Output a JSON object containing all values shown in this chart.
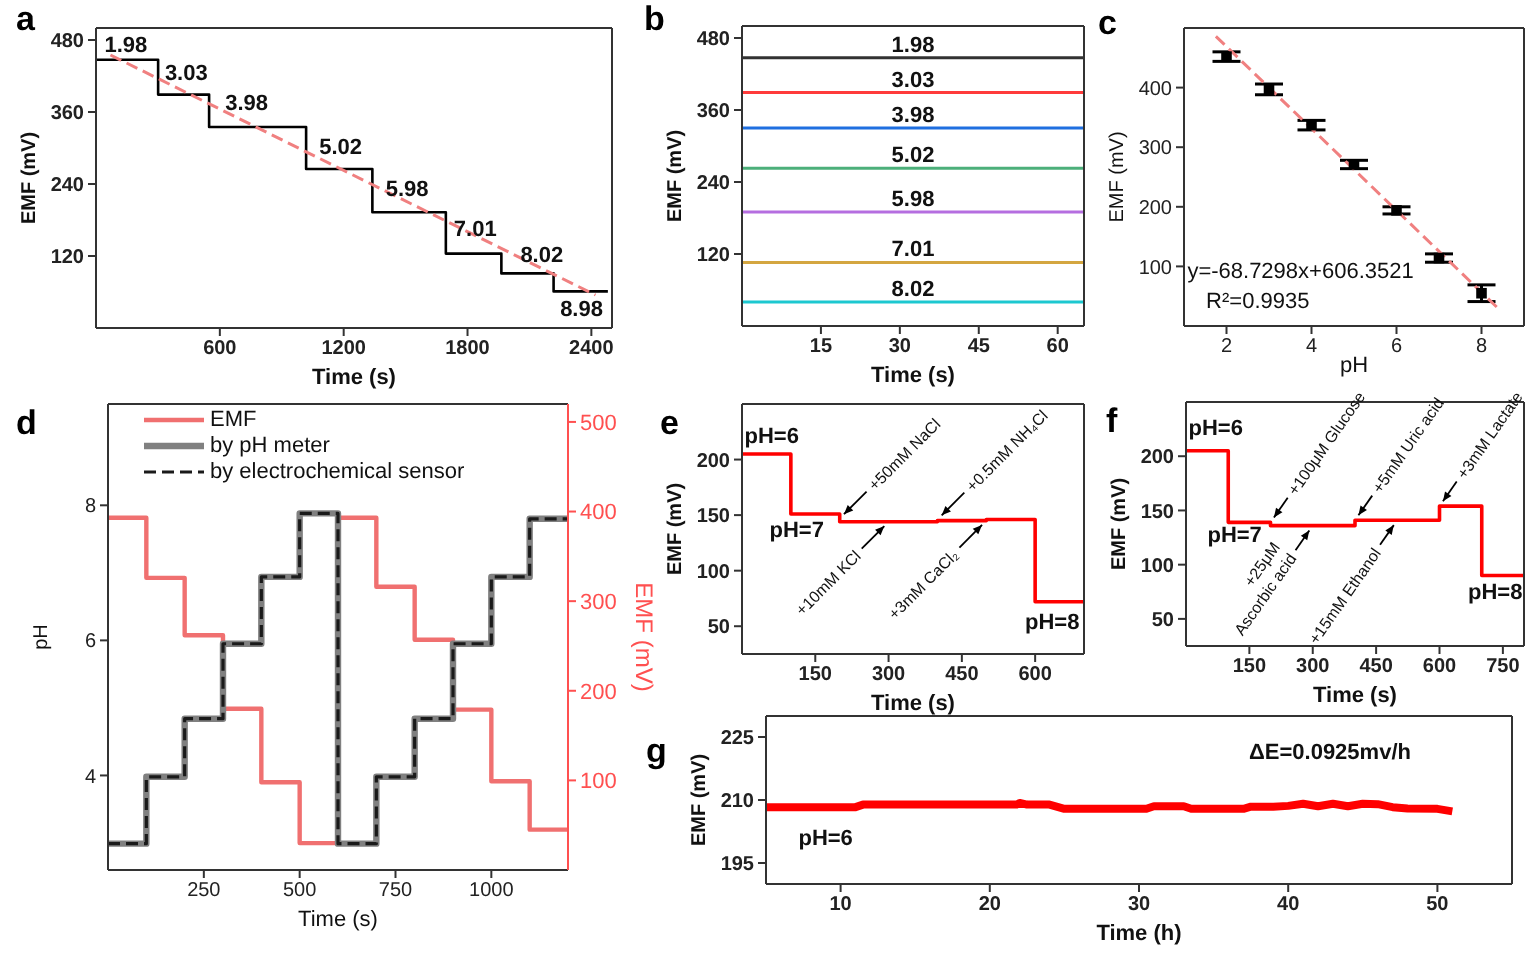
{
  "chart_data": [
    {
      "type": "step",
      "title": "a",
      "xlabel": "Time (s)",
      "ylabel": "EMF (mV)",
      "xlim": [
        0,
        2500
      ],
      "xticks": [
        600,
        1200,
        1800,
        2400
      ],
      "ylim": [
        0,
        500
      ],
      "yticks": [
        120,
        240,
        360,
        480
      ],
      "series": [
        {
          "color": "#000000",
          "x": [
            0,
            301,
            548,
            1018,
            1339,
            1695,
            1964,
            2217,
            2480
          ],
          "values": [
            447,
            389,
            335,
            265,
            193,
            124,
            91,
            61,
            61
          ]
        },
        {
          "type": "line",
          "color": "#f08080",
          "line_style": "dashed",
          "x": [
            70,
            2420
          ],
          "values": [
            455,
            55
          ]
        }
      ],
      "annotations": [
        "1.98",
        "3.03",
        "3.98",
        "5.02",
        "5.98",
        "7.01",
        "8.02",
        "8.98"
      ]
    },
    {
      "type": "line",
      "title": "b",
      "xlabel": "Time (s)",
      "ylabel": "EMF (mV)",
      "xlim": [
        0,
        65
      ],
      "xticks": [
        15,
        30,
        45,
        60
      ],
      "ylim": [
        0,
        500
      ],
      "yticks": [
        120,
        240,
        360,
        480
      ],
      "x": [
        0,
        65
      ],
      "series": [
        {
          "name": "1.98",
          "color": "#333333",
          "values": [
            447,
            447
          ]
        },
        {
          "name": "3.03",
          "color": "#ff3b3b",
          "values": [
            389,
            389
          ]
        },
        {
          "name": "3.98",
          "color": "#1f6fe0",
          "values": [
            330,
            330
          ]
        },
        {
          "name": "5.02",
          "color": "#4caf7a",
          "values": [
            263,
            263
          ]
        },
        {
          "name": "5.98",
          "color": "#b56ee0",
          "values": [
            190,
            190
          ]
        },
        {
          "name": "7.01",
          "color": "#d4a640",
          "values": [
            106,
            106
          ]
        },
        {
          "name": "8.02",
          "color": "#1cc8d0",
          "values": [
            40,
            40
          ]
        }
      ]
    },
    {
      "type": "scatter",
      "title": "c",
      "xlabel": "pH",
      "ylabel": "EMF (mV)",
      "xlim": [
        1,
        9
      ],
      "xticks": [
        2,
        4,
        6,
        8
      ],
      "ylim": [
        0,
        500
      ],
      "yticks": [
        100,
        200,
        300,
        400
      ],
      "series": [
        {
          "color": "#000000",
          "marker": "square",
          "x": [
            2,
            3,
            4,
            5,
            6,
            7,
            8
          ],
          "values": [
            452,
            397,
            337,
            271,
            194,
            114,
            55
          ],
          "errors": [
            8,
            9,
            8,
            7,
            6,
            7,
            14
          ]
        },
        {
          "type": "line",
          "color": "#f08080",
          "line_style": "dashed",
          "x": [
            1.75,
            8.4
          ],
          "values": [
            486,
            29
          ]
        }
      ],
      "annotations": [
        "y=-68.7298x+606.3521",
        "R²=0.9935"
      ]
    },
    {
      "type": "step",
      "title": "d",
      "xlabel": "Time (s)",
      "ylabel": "pH",
      "y2label": "EMF (mV)",
      "xlim": [
        0,
        1200
      ],
      "xticks": [
        250,
        500,
        750,
        1000
      ],
      "ylim": [
        2.6,
        9.5
      ],
      "yticks": [
        4,
        6,
        8
      ],
      "y2lim": [
        0,
        520
      ],
      "y2ticks": [
        100,
        200,
        300,
        400,
        500
      ],
      "legend": "top",
      "series": [
        {
          "name": "EMF",
          "axis": "y2",
          "color": "#f07070",
          "x": [
            0,
            100,
            200,
            300,
            400,
            500,
            600,
            700,
            800,
            900,
            1000,
            1100,
            1200
          ],
          "values": [
            393,
            326,
            262,
            180,
            98,
            30,
            393,
            316,
            257,
            179,
            99,
            45,
            45
          ]
        },
        {
          "name": "by pH meter",
          "color": "#808080",
          "x": [
            0,
            100,
            200,
            300,
            400,
            500,
            600,
            700,
            800,
            900,
            1000,
            1100,
            1200
          ],
          "values": [
            2.99,
            3.98,
            4.84,
            5.95,
            6.94,
            7.88,
            2.99,
            3.98,
            4.84,
            5.95,
            6.94,
            7.8,
            7.8
          ]
        },
        {
          "name": "by electrochemical sensor",
          "color": "#1a1a1a",
          "line_style": "dashed",
          "x": [
            0,
            100,
            200,
            300,
            400,
            500,
            600,
            700,
            800,
            900,
            1000,
            1100,
            1200
          ],
          "values": [
            2.99,
            3.98,
            4.84,
            5.95,
            6.94,
            7.88,
            2.99,
            3.98,
            4.84,
            5.95,
            6.94,
            7.8,
            7.8
          ]
        }
      ]
    },
    {
      "type": "step",
      "title": "e",
      "xlabel": "Time (s)",
      "ylabel": "EMF (mV)",
      "xlim": [
        0,
        700
      ],
      "xticks": [
        150,
        300,
        450,
        600
      ],
      "ylim": [
        25,
        250
      ],
      "yticks": [
        50,
        100,
        150,
        200
      ],
      "series": [
        {
          "color": "#ff0000",
          "x": [
            0,
            100,
            200,
            400,
            500,
            600,
            700
          ],
          "values": [
            205,
            151,
            144,
            145,
            146,
            72,
            72
          ]
        }
      ],
      "annotations": [
        "pH=6",
        "pH=7",
        "pH=8",
        {
          "text": "+50mM NaCl",
          "x": 200,
          "y": 147
        },
        {
          "text": "+0.5mM NH₄Cl",
          "x": 400,
          "y": 146
        },
        {
          "text": "+10mM KCl",
          "x": 300,
          "y": 144
        },
        {
          "text": "+3mM CaCl₂",
          "x": 500,
          "y": 145
        }
      ]
    },
    {
      "type": "step",
      "title": "f",
      "xlabel": "Time (s)",
      "ylabel": "EMF (mV)",
      "xlim": [
        0,
        800
      ],
      "xticks": [
        150,
        300,
        450,
        600,
        750
      ],
      "ylim": [
        25,
        250
      ],
      "yticks": [
        50,
        100,
        150,
        200
      ],
      "series": [
        {
          "color": "#ff0000",
          "x": [
            0,
            100,
            200,
            400,
            600,
            700,
            800
          ],
          "values": [
            205,
            139,
            136,
            141,
            154,
            90,
            90
          ]
        }
      ],
      "annotations": [
        "pH=6",
        "pH=7",
        "pH=8",
        {
          "text": "+100μM Glucose",
          "x": 200,
          "y": 139
        },
        {
          "text": "+5mM Uric acid",
          "x": 400,
          "y": 141
        },
        {
          "text": "+3mM Lactate",
          "x": 600,
          "y": 154
        },
        {
          "text": "+25μM\nAscorbic acid",
          "x": 300,
          "y": 136
        },
        {
          "text": "+15mM Ethanol",
          "x": 500,
          "y": 141
        }
      ]
    },
    {
      "type": "line",
      "title": "g",
      "xlabel": "Time (h)",
      "ylabel": "EMF (mV)",
      "xlim": [
        5,
        55
      ],
      "xticks": [
        10,
        20,
        30,
        40,
        50
      ],
      "ylim": [
        190,
        230
      ],
      "yticks": [
        195,
        210,
        225
      ],
      "series": [
        {
          "color": "#ff0000",
          "x": [
            5,
            11,
            11.5,
            21.8,
            22,
            22.5,
            24,
            25,
            30.5,
            31,
            33,
            33.5,
            37,
            37.5,
            39,
            40,
            41,
            42,
            43,
            44,
            45,
            46,
            47,
            48,
            50,
            51
          ],
          "values": [
            208.3,
            208.3,
            208.9,
            208.9,
            209.3,
            208.9,
            208.9,
            207.9,
            207.9,
            208.5,
            208.5,
            207.9,
            207.9,
            208.4,
            208.4,
            208.6,
            209.1,
            208.5,
            209.1,
            208.5,
            209.1,
            209.0,
            208.3,
            208.0,
            207.9,
            207.3
          ]
        }
      ],
      "annotations": [
        "ΔE=0.0925mv/h",
        "pH=6"
      ]
    }
  ]
}
